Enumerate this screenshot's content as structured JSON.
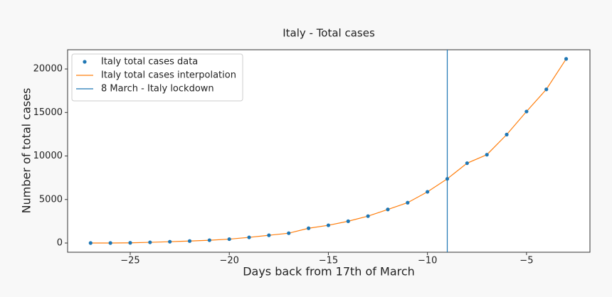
{
  "chart_data": {
    "type": "scatter-line",
    "title": "Italy - Total cases",
    "xlabel": "Days back from 17th of March",
    "ylabel": "Number of total cases",
    "x": [
      -27,
      -26,
      -25,
      -24,
      -23,
      -22,
      -21,
      -20,
      -19,
      -18,
      -17,
      -16,
      -15,
      -14,
      -13,
      -12,
      -11,
      -10,
      -9,
      -8,
      -7,
      -6,
      -5,
      -4,
      -3
    ],
    "series": [
      {
        "name": "Italy total cases data",
        "kind": "points",
        "color": "#1f77b4",
        "values": [
          3,
          3,
          20,
          79,
          150,
          227,
          320,
          445,
          650,
          888,
          1128,
          1694,
          2036,
          2502,
          3089,
          3858,
          4636,
          5883,
          7375,
          9172,
          10149,
          12462,
          15113,
          17660,
          21157
        ]
      },
      {
        "name": "Italy total cases interpolation",
        "kind": "line",
        "color": "#ff7f0e",
        "values": [
          3,
          3,
          20,
          79,
          150,
          227,
          320,
          445,
          650,
          888,
          1128,
          1694,
          2036,
          2502,
          3089,
          3858,
          4636,
          5883,
          7375,
          9172,
          10149,
          12462,
          15113,
          17660,
          21157
        ]
      }
    ],
    "vline": {
      "name": "8 March - Italy lockdown",
      "x": -9,
      "color": "#1f77b4"
    },
    "xlim": [
      -28.16,
      -1.8
    ],
    "ylim": [
      -1060,
      22210
    ],
    "xticks": [
      {
        "value": -25,
        "label": "−25"
      },
      {
        "value": -20,
        "label": "−20"
      },
      {
        "value": -15,
        "label": "−15"
      },
      {
        "value": -10,
        "label": "−10"
      },
      {
        "value": -5,
        "label": "−5"
      }
    ],
    "yticks": [
      0,
      5000,
      10000,
      15000,
      20000
    ],
    "legend": "upper-left"
  }
}
